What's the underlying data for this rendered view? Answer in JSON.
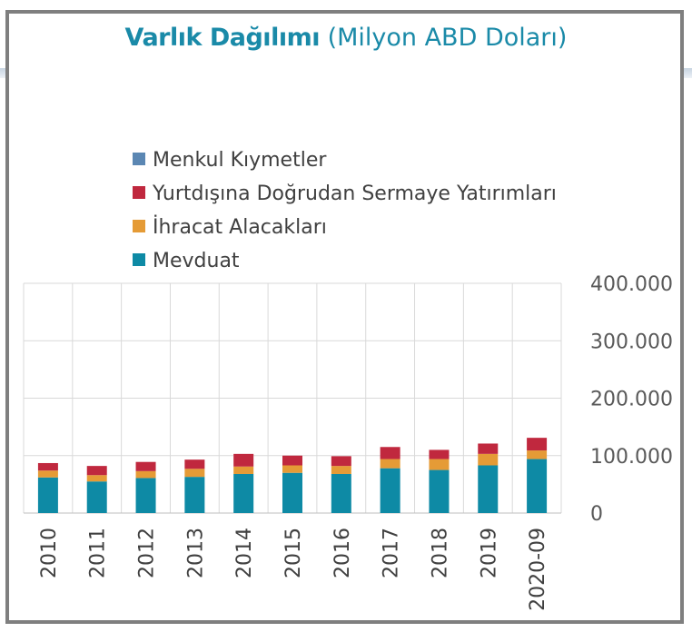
{
  "header": {
    "title_main": "Varlık Dağılımı",
    "title_unit": "(Milyon ABD Doları)"
  },
  "chart_data": {
    "type": "bar",
    "stacked": true,
    "categories": [
      "2010",
      "2011",
      "2012",
      "2013",
      "2014",
      "2015",
      "2016",
      "2017",
      "2018",
      "2019",
      "2020-09"
    ],
    "series": [
      {
        "name": "Mevduat",
        "color": "#0e8aa5",
        "values": [
          62000,
          55000,
          61000,
          63000,
          68000,
          70000,
          68000,
          78000,
          75000,
          83000,
          94000
        ]
      },
      {
        "name": "İhracat Alacakları",
        "color": "#e59b36",
        "values": [
          12000,
          11000,
          12000,
          14000,
          13000,
          13000,
          14000,
          16000,
          19000,
          20000,
          15000
        ]
      },
      {
        "name": "Yurtdışına Doğrudan Sermaye Yatırımları",
        "color": "#c0283e",
        "values": [
          13000,
          16000,
          16000,
          16000,
          22000,
          17000,
          17000,
          21000,
          16000,
          18000,
          22000
        ]
      },
      {
        "name": "Menkul Kıymetler",
        "color": "#5b87b3",
        "values": [
          0,
          0,
          0,
          0,
          0,
          0,
          0,
          0,
          0,
          0,
          0
        ]
      }
    ],
    "legend_order": [
      "Menkul Kıymetler",
      "Yurtdışına Doğrudan Sermaye Yatırımları",
      "İhracat Alacakları",
      "Mevduat"
    ],
    "ylim": [
      0,
      400000
    ],
    "y_ticks": [
      0,
      100000,
      200000,
      300000,
      400000
    ],
    "y_tick_labels": [
      "0",
      "100.000",
      "200.000",
      "300.000",
      "400.000"
    ],
    "y_axis_side": "right",
    "grid": true,
    "legend_position": "top-left",
    "xlabel": "",
    "ylabel": ""
  }
}
